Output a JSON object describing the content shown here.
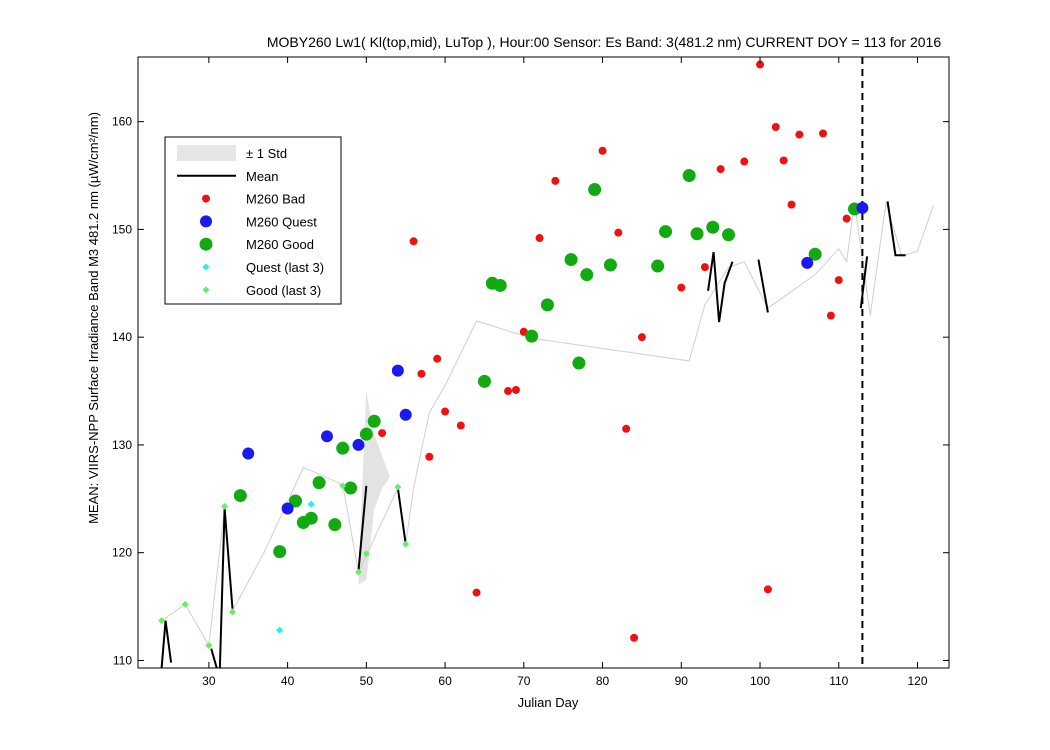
{
  "chart_data": {
    "type": "scatter",
    "title": "MOBY260   Lw1( Kl(top,mid), LuTop ),   Hour:00 Sensor: Es Band: 3(481.2 nm)   CURRENT DOY = 113 for 2016",
    "xlabel": "Julian Day",
    "ylabel": "MEAN: VIIRS-NPP Surface Irradiance Band M3 481.2 nm (µW/cm²/nm)",
    "xlim": [
      21,
      124
    ],
    "ylim": [
      109.3,
      166
    ],
    "xticks": [
      30,
      40,
      50,
      60,
      70,
      80,
      90,
      100,
      110,
      120
    ],
    "yticks": [
      110,
      120,
      130,
      140,
      150,
      160
    ],
    "legend_position": "upper-left",
    "legend": [
      {
        "label": "± 1 Std",
        "kind": "patch",
        "color": "#e6e6e6"
      },
      {
        "label": "Mean",
        "kind": "line",
        "color": "#000000"
      },
      {
        "label": "M260 Bad",
        "kind": "marker",
        "color": "#ee1111"
      },
      {
        "label": "M260 Quest",
        "kind": "marker",
        "color": "#1a1aee"
      },
      {
        "label": "M260 Good",
        "kind": "marker",
        "color": "#11aa11"
      },
      {
        "label": "Quest (last 3)",
        "kind": "diamond",
        "color": "#22eeee"
      },
      {
        "label": "Good (last 3)",
        "kind": "diamond",
        "color": "#66ee66"
      }
    ],
    "current_doy": 113,
    "std_band": [
      {
        "x": [
          49,
          50,
          51,
          52,
          53,
          52,
          51,
          50,
          49
        ],
        "y": [
          118,
          135,
          131,
          129,
          127,
          126,
          124,
          117.5,
          117
        ]
      }
    ],
    "gray_line": {
      "x": [
        24,
        27,
        30,
        32,
        33,
        37,
        42,
        44,
        47,
        49,
        54,
        55,
        56,
        58,
        60,
        64,
        71,
        91,
        93,
        96,
        98,
        101,
        107,
        110,
        111,
        112,
        114,
        116,
        118,
        120,
        122
      ],
      "y": [
        113.7,
        115.2,
        111.4,
        124.2,
        114.6,
        120,
        127.9,
        127.3,
        126.3,
        118.2,
        126,
        120.8,
        126,
        133,
        135.5,
        141.5,
        139.9,
        137.8,
        143,
        146.5,
        147,
        142.7,
        145.8,
        148.2,
        147,
        152.5,
        142,
        152.5,
        147.5,
        148,
        152.2
      ]
    },
    "mean_segments": [
      {
        "x": [
          24,
          24.5,
          25.2
        ],
        "y": [
          109.3,
          113.7,
          109.8
        ]
      },
      {
        "x": [
          30.3,
          31
        ],
        "y": [
          111.1,
          109.3
        ]
      },
      {
        "x": [
          31.4,
          32,
          33
        ],
        "y": [
          109.3,
          124.1,
          114.8
        ]
      },
      {
        "x": [
          49,
          50
        ],
        "y": [
          118.3,
          126.2
        ]
      },
      {
        "x": [
          54,
          55
        ],
        "y": [
          126,
          120.8
        ]
      },
      {
        "x": [
          93.4,
          94.1,
          94.8,
          95.5,
          96.5
        ],
        "y": [
          144.3,
          147.9,
          141.4,
          145,
          147
        ]
      },
      {
        "x": [
          99.8,
          101
        ],
        "y": [
          147.2,
          142.3
        ]
      },
      {
        "x": [
          112.8,
          113.6
        ],
        "y": [
          142.7,
          147.5
        ]
      },
      {
        "x": [
          116.2,
          117.2,
          118.5
        ],
        "y": [
          152.6,
          147.6,
          147.6
        ]
      }
    ],
    "series": [
      {
        "name": "M260 Bad",
        "x": [
          56,
          57,
          58,
          59,
          60,
          62,
          64,
          68,
          69,
          70,
          72,
          74,
          80,
          82,
          83,
          84,
          85,
          90,
          93,
          95,
          98,
          100,
          101,
          102,
          103,
          104,
          105,
          108,
          109,
          110,
          111,
          52
        ],
        "y": [
          148.9,
          136.6,
          128.9,
          138,
          133.1,
          131.8,
          116.3,
          135,
          135.1,
          140.5,
          149.2,
          154.5,
          157.3,
          149.7,
          131.5,
          112.1,
          140,
          144.6,
          146.5,
          155.6,
          156.3,
          165.3,
          116.6,
          159.5,
          156.4,
          152.3,
          158.8,
          158.9,
          142,
          145.3,
          151,
          131.1
        ]
      },
      {
        "name": "M260 Quest",
        "x": [
          35,
          40,
          45,
          49,
          54,
          55,
          106,
          113
        ],
        "y": [
          129.2,
          124.1,
          130.8,
          130,
          136.9,
          132.8,
          146.9,
          152
        ]
      },
      {
        "name": "M260 Good",
        "x": [
          34,
          39,
          41,
          42,
          43,
          44,
          46,
          47,
          48,
          50,
          51,
          65,
          66,
          67,
          71,
          73,
          76,
          77,
          78,
          79,
          81,
          87,
          88,
          91,
          92,
          94,
          96,
          107,
          112
        ],
        "y": [
          125.3,
          120.1,
          124.8,
          122.8,
          123.2,
          126.5,
          122.6,
          129.7,
          126,
          131,
          132.2,
          135.9,
          145,
          144.8,
          140.1,
          143,
          147.2,
          137.6,
          145.8,
          153.7,
          146.7,
          146.6,
          149.8,
          155,
          149.6,
          150.2,
          149.5,
          147.7,
          151.9
        ]
      },
      {
        "name": "Quest (last 3)",
        "x": [
          39,
          43
        ],
        "y": [
          112.8,
          124.5
        ]
      },
      {
        "name": "Good (last 3)",
        "x": [
          24,
          27,
          30,
          32,
          33,
          47,
          49,
          50,
          54,
          55
        ],
        "y": [
          113.7,
          115.2,
          111.4,
          124.3,
          114.5,
          126.2,
          118.2,
          119.9,
          126.1,
          120.8
        ]
      }
    ]
  }
}
